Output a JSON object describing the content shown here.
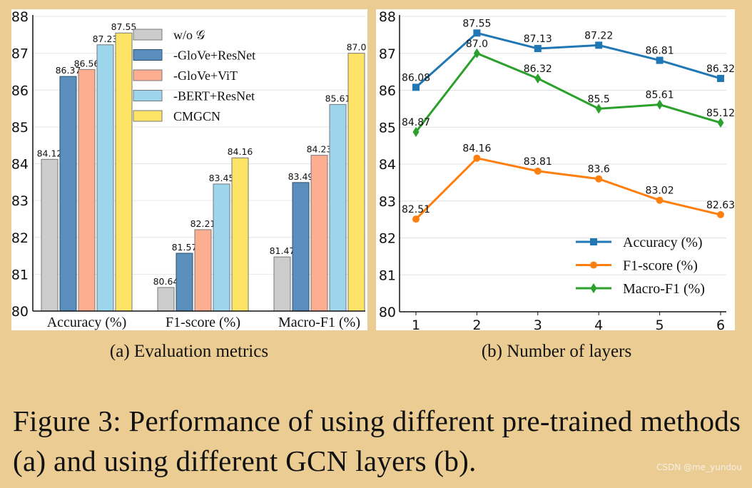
{
  "chart_data": [
    {
      "type": "bar",
      "caption": "(a) Evaluation metrics",
      "categories": [
        "Accuracy (%)",
        "F1-score (%)",
        "Macro-F1 (%)"
      ],
      "series": [
        {
          "name": "w/o 𝒢",
          "color": "#cccccc",
          "values": [
            84.12,
            80.64,
            81.47
          ],
          "labels": [
            "84.12",
            "80.64",
            "81.47"
          ]
        },
        {
          "name": "-GloVe+ResNet",
          "color": "#5a8fbd",
          "values": [
            86.37,
            81.57,
            83.49
          ],
          "labels": [
            "86.37",
            "81.57",
            "83.49"
          ]
        },
        {
          "name": "-GloVe+ViT",
          "color": "#fdae91",
          "values": [
            86.56,
            82.21,
            84.23
          ],
          "labels": [
            "86.56",
            "82.21",
            "84.23"
          ]
        },
        {
          "name": "-BERT+ResNet",
          "color": "#9dd5ec",
          "values": [
            87.23,
            83.45,
            85.61
          ],
          "labels": [
            "87.23",
            "83.45",
            "85.61"
          ]
        },
        {
          "name": "CMGCN",
          "color": "#fde466",
          "values": [
            87.55,
            84.16,
            87.0
          ],
          "labels": [
            "87.55",
            "84.16",
            "87.0"
          ]
        }
      ],
      "ylim": [
        80,
        88
      ],
      "yticks": [
        "80",
        "81",
        "82",
        "83",
        "84",
        "85",
        "86",
        "87",
        "88"
      ],
      "grid": true,
      "legend": "top-center"
    },
    {
      "type": "line",
      "caption": "(b) Number of layers",
      "x": [
        1,
        2,
        3,
        4,
        5,
        6
      ],
      "xticks": [
        "1",
        "2",
        "3",
        "4",
        "5",
        "6"
      ],
      "series": [
        {
          "name": "Accuracy (%)",
          "color": "#1f77b4",
          "marker": "square",
          "values": [
            86.08,
            87.55,
            87.13,
            87.22,
            86.81,
            86.32
          ],
          "labels": [
            "86.08",
            "87.55",
            "87.13",
            "87.22",
            "86.81",
            "86.32"
          ]
        },
        {
          "name": "F1-score (%)",
          "color": "#ff7f0e",
          "marker": "circle",
          "values": [
            82.51,
            84.16,
            83.81,
            83.6,
            83.02,
            82.63
          ],
          "labels": [
            "82.51",
            "84.16",
            "83.81",
            "83.6",
            "83.02",
            "82.63"
          ]
        },
        {
          "name": "Macro-F1 (%)",
          "color": "#2ca02c",
          "marker": "diamond",
          "values": [
            84.87,
            87.0,
            86.32,
            85.5,
            85.61,
            85.12
          ],
          "labels": [
            "84.87",
            "87.0",
            "86.32",
            "85.5",
            "85.61",
            "85.12"
          ]
        }
      ],
      "ylim": [
        80,
        88
      ],
      "yticks": [
        "80",
        "81",
        "82",
        "83",
        "84",
        "85",
        "86",
        "87",
        "88"
      ],
      "grid": true,
      "legend": "bottom-right"
    }
  ],
  "figure_caption": "Figure 3: Performance of using different pre-trained methods (a) and using different GCN layers (b).",
  "watermark": "CSDN @me_yundou"
}
